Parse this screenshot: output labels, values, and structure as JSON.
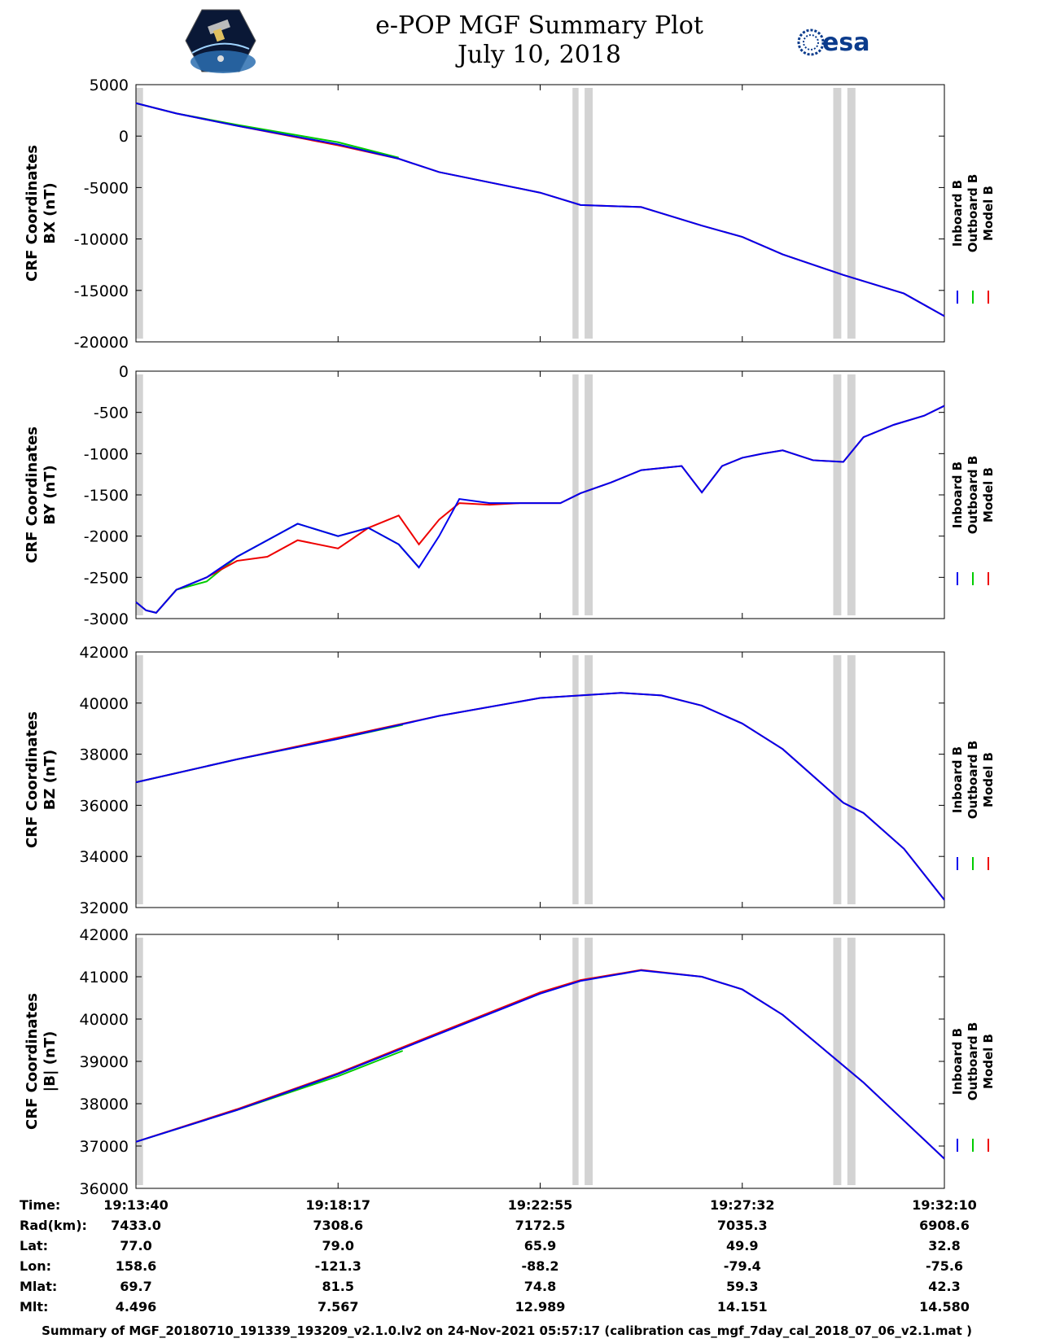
{
  "title": "e-POP MGF Summary Plot",
  "date": "July 10, 2018",
  "logos": {
    "left": "CASSIOPE mission patch",
    "right": "esa"
  },
  "colors": {
    "inboard": "#0000ee",
    "outboard": "#00cc00",
    "model": "#ee0000",
    "gap": "#d3d3d3"
  },
  "legend": [
    "Inboard B",
    "Outboard B",
    "Model B"
  ],
  "time_ticks": [
    "19:13:40",
    "19:18:17",
    "19:22:55",
    "19:27:32",
    "19:32:10"
  ],
  "orbit_table": {
    "rows": [
      {
        "label": "Time:",
        "values": [
          "19:13:40",
          "19:18:17",
          "19:22:55",
          "19:27:32",
          "19:32:10"
        ]
      },
      {
        "label": "Rad(km):",
        "values": [
          "7433.0",
          "7308.6",
          "7172.5",
          "7035.3",
          "6908.6"
        ]
      },
      {
        "label": "Lat:",
        "values": [
          "77.0",
          "79.0",
          "65.9",
          "49.9",
          "32.8"
        ]
      },
      {
        "label": "Lon:",
        "values": [
          "158.6",
          "-121.3",
          "-88.2",
          "-79.4",
          "-75.6"
        ]
      },
      {
        "label": "Mlat:",
        "values": [
          "69.7",
          "81.5",
          "74.8",
          "59.3",
          "42.3"
        ]
      },
      {
        "label": "Mlt:",
        "values": [
          "4.496",
          "7.567",
          "12.989",
          "14.151",
          "14.580"
        ]
      }
    ]
  },
  "footer": "Summary of MGF_20180710_191339_193209_v2.1.0.lv2 on 24-Nov-2021 05:57:17 (calibration cas_mgf_7day_cal_2018_07_06_v2.1.mat )",
  "chart_data": [
    {
      "type": "line",
      "ylabel": [
        "CRF Coordinates",
        "BX (nT)"
      ],
      "yticks": [
        5000,
        0,
        -5000,
        -10000,
        -15000,
        -20000
      ],
      "ylim": [
        -20000,
        5000
      ],
      "xlim": [
        0,
        1110
      ],
      "gaps": [
        [
          0,
          2
        ],
        [
          2.7,
          2.75
        ],
        [
          3.8,
          3.85
        ]
      ],
      "series": [
        {
          "name": "Inboard B",
          "x": [
            0,
            0.2,
            0.5,
            1.0,
            1.3,
            1.5,
            2.0,
            2.2,
            2.5,
            2.8,
            3.0,
            3.2,
            3.5,
            3.8,
            4.0
          ],
          "values": [
            3200,
            2200,
            1000,
            -800,
            -2200,
            -3500,
            -5500,
            -6700,
            -6900,
            -8700,
            -9800,
            -11500,
            -13500,
            -15300,
            -17500
          ]
        },
        {
          "name": "Outboard B",
          "x": [
            0,
            0.2,
            0.5,
            1.0,
            1.3
          ],
          "values": [
            3200,
            2200,
            1100,
            -600,
            -2100
          ]
        },
        {
          "name": "Model B",
          "x": [
            0,
            0.2,
            0.5,
            1.0,
            1.3,
            1.5,
            2.0,
            2.2,
            2.5,
            2.8,
            3.0,
            3.2,
            3.5,
            3.8,
            4.0
          ],
          "values": [
            3200,
            2200,
            1000,
            -900,
            -2200,
            -3500,
            -5500,
            -6700,
            -6900,
            -8700,
            -9800,
            -11500,
            -13500,
            -15300,
            -17500
          ]
        }
      ]
    },
    {
      "type": "line",
      "ylabel": [
        "CRF Coordinates",
        "BY (nT)"
      ],
      "yticks": [
        0,
        -500,
        -1000,
        -1500,
        -2000,
        -2500,
        -3000
      ],
      "ylim": [
        -3000,
        0
      ],
      "xlim": [
        0,
        4
      ],
      "gaps": [
        [
          2.16,
          2.19
        ],
        [
          2.22,
          2.26
        ],
        [
          3.45,
          3.49
        ],
        [
          3.52,
          3.56
        ]
      ],
      "series": [
        {
          "name": "Inboard B",
          "x": [
            0,
            0.05,
            0.1,
            0.2,
            0.35,
            0.5,
            0.65,
            0.8,
            1.0,
            1.15,
            1.3,
            1.4,
            1.5,
            1.6,
            1.75,
            1.9,
            2.1,
            2.2,
            2.35,
            2.5,
            2.7,
            2.8,
            2.9,
            3.0,
            3.1,
            3.2,
            3.35,
            3.5,
            3.6,
            3.75,
            3.9,
            4.0
          ],
          "values": [
            -2800,
            -2900,
            -2930,
            -2650,
            -2500,
            -2250,
            -2050,
            -1850,
            -2000,
            -1900,
            -2100,
            -2380,
            -2000,
            -1550,
            -1600,
            -1600,
            -1600,
            -1480,
            -1350,
            -1200,
            -1150,
            -1470,
            -1150,
            -1050,
            -1000,
            -960,
            -1080,
            -1100,
            -800,
            -650,
            -540,
            -420
          ]
        },
        {
          "name": "Outboard B",
          "x": [
            0,
            0.05,
            0.1,
            0.2,
            0.35,
            0.5,
            0.65,
            0.8,
            1.0,
            1.15,
            1.3,
            1.4
          ],
          "values": [
            -2800,
            -2900,
            -2930,
            -2650,
            -2550,
            -2250,
            -2050,
            -1850,
            -2000,
            -1900,
            -2100,
            -2380
          ]
        },
        {
          "name": "Model B",
          "x": [
            0,
            0.05,
            0.1,
            0.2,
            0.35,
            0.5,
            0.65,
            0.8,
            1.0,
            1.15,
            1.3,
            1.4,
            1.5,
            1.6,
            1.75,
            1.9,
            2.1,
            2.2,
            2.35,
            2.5,
            2.7,
            2.8,
            2.9,
            3.0,
            3.1,
            3.2,
            3.35,
            3.5,
            3.6,
            3.75,
            3.9,
            4.0
          ],
          "values": [
            -2800,
            -2900,
            -2930,
            -2650,
            -2500,
            -2300,
            -2250,
            -2050,
            -2150,
            -1900,
            -1750,
            -2100,
            -1800,
            -1600,
            -1620,
            -1600,
            -1600,
            -1480,
            -1350,
            -1200,
            -1150,
            -1470,
            -1150,
            -1050,
            -1000,
            -960,
            -1080,
            -1100,
            -800,
            -650,
            -540,
            -420
          ]
        }
      ]
    },
    {
      "type": "line",
      "ylabel": [
        "CRF Coordinates",
        "BZ (nT)"
      ],
      "yticks": [
        42000,
        40000,
        38000,
        36000,
        34000,
        32000
      ],
      "ylim": [
        32000,
        42000
      ],
      "xlim": [
        0,
        4
      ],
      "gaps": [
        [
          2.16,
          2.19
        ],
        [
          2.22,
          2.26
        ],
        [
          3.45,
          3.49
        ],
        [
          3.52,
          3.56
        ]
      ],
      "series": [
        {
          "name": "Inboard B",
          "x": [
            0,
            0.5,
            1.0,
            1.5,
            2.0,
            2.2,
            2.4,
            2.6,
            2.8,
            3.0,
            3.2,
            3.4,
            3.5,
            3.6,
            3.8,
            4.0
          ],
          "values": [
            36900,
            37800,
            38600,
            39500,
            40200,
            40300,
            40400,
            40300,
            39900,
            39200,
            38200,
            36800,
            36100,
            35700,
            34300,
            32300
          ]
        },
        {
          "name": "Outboard B",
          "x": [
            0,
            0.5,
            1.0,
            1.32
          ],
          "values": [
            36900,
            37800,
            38600,
            39150
          ]
        },
        {
          "name": "Model B",
          "x": [
            0,
            0.5,
            1.0,
            1.5,
            2.0,
            2.2,
            2.4,
            2.6,
            2.8,
            3.0,
            3.2,
            3.4,
            3.5,
            3.6,
            3.8,
            4.0
          ],
          "values": [
            36900,
            37800,
            38650,
            39500,
            40200,
            40300,
            40400,
            40300,
            39900,
            39200,
            38200,
            36800,
            36100,
            35700,
            34300,
            32300
          ]
        }
      ]
    },
    {
      "type": "line",
      "ylabel": [
        "CRF Coordinates",
        "|B| (nT)"
      ],
      "yticks": [
        42000,
        41000,
        40000,
        39000,
        38000,
        37000,
        36000
      ],
      "ylim": [
        36000,
        42000
      ],
      "xlim": [
        0,
        4
      ],
      "gaps": [
        [
          2.16,
          2.19
        ],
        [
          2.22,
          2.26
        ],
        [
          3.45,
          3.49
        ],
        [
          3.52,
          3.56
        ]
      ],
      "series": [
        {
          "name": "Inboard B",
          "x": [
            0,
            0.5,
            1.0,
            1.5,
            2.0,
            2.2,
            2.5,
            2.8,
            3.0,
            3.2,
            3.4,
            3.6,
            3.8,
            4.0
          ],
          "values": [
            37100,
            37850,
            38700,
            39650,
            40600,
            40900,
            41150,
            41000,
            40700,
            40100,
            39300,
            38500,
            37600,
            36700
          ]
        },
        {
          "name": "Outboard B",
          "x": [
            0,
            0.5,
            1.0,
            1.32
          ],
          "values": [
            37100,
            37850,
            38650,
            39250
          ]
        },
        {
          "name": "Model B",
          "x": [
            0,
            0.5,
            1.0,
            1.5,
            2.0,
            2.2,
            2.5,
            2.8,
            3.0,
            3.2,
            3.4,
            3.6,
            3.8,
            4.0
          ],
          "values": [
            37100,
            37870,
            38720,
            39680,
            40630,
            40920,
            41160,
            41000,
            40700,
            40100,
            39300,
            38500,
            37600,
            36700
          ]
        }
      ]
    }
  ]
}
